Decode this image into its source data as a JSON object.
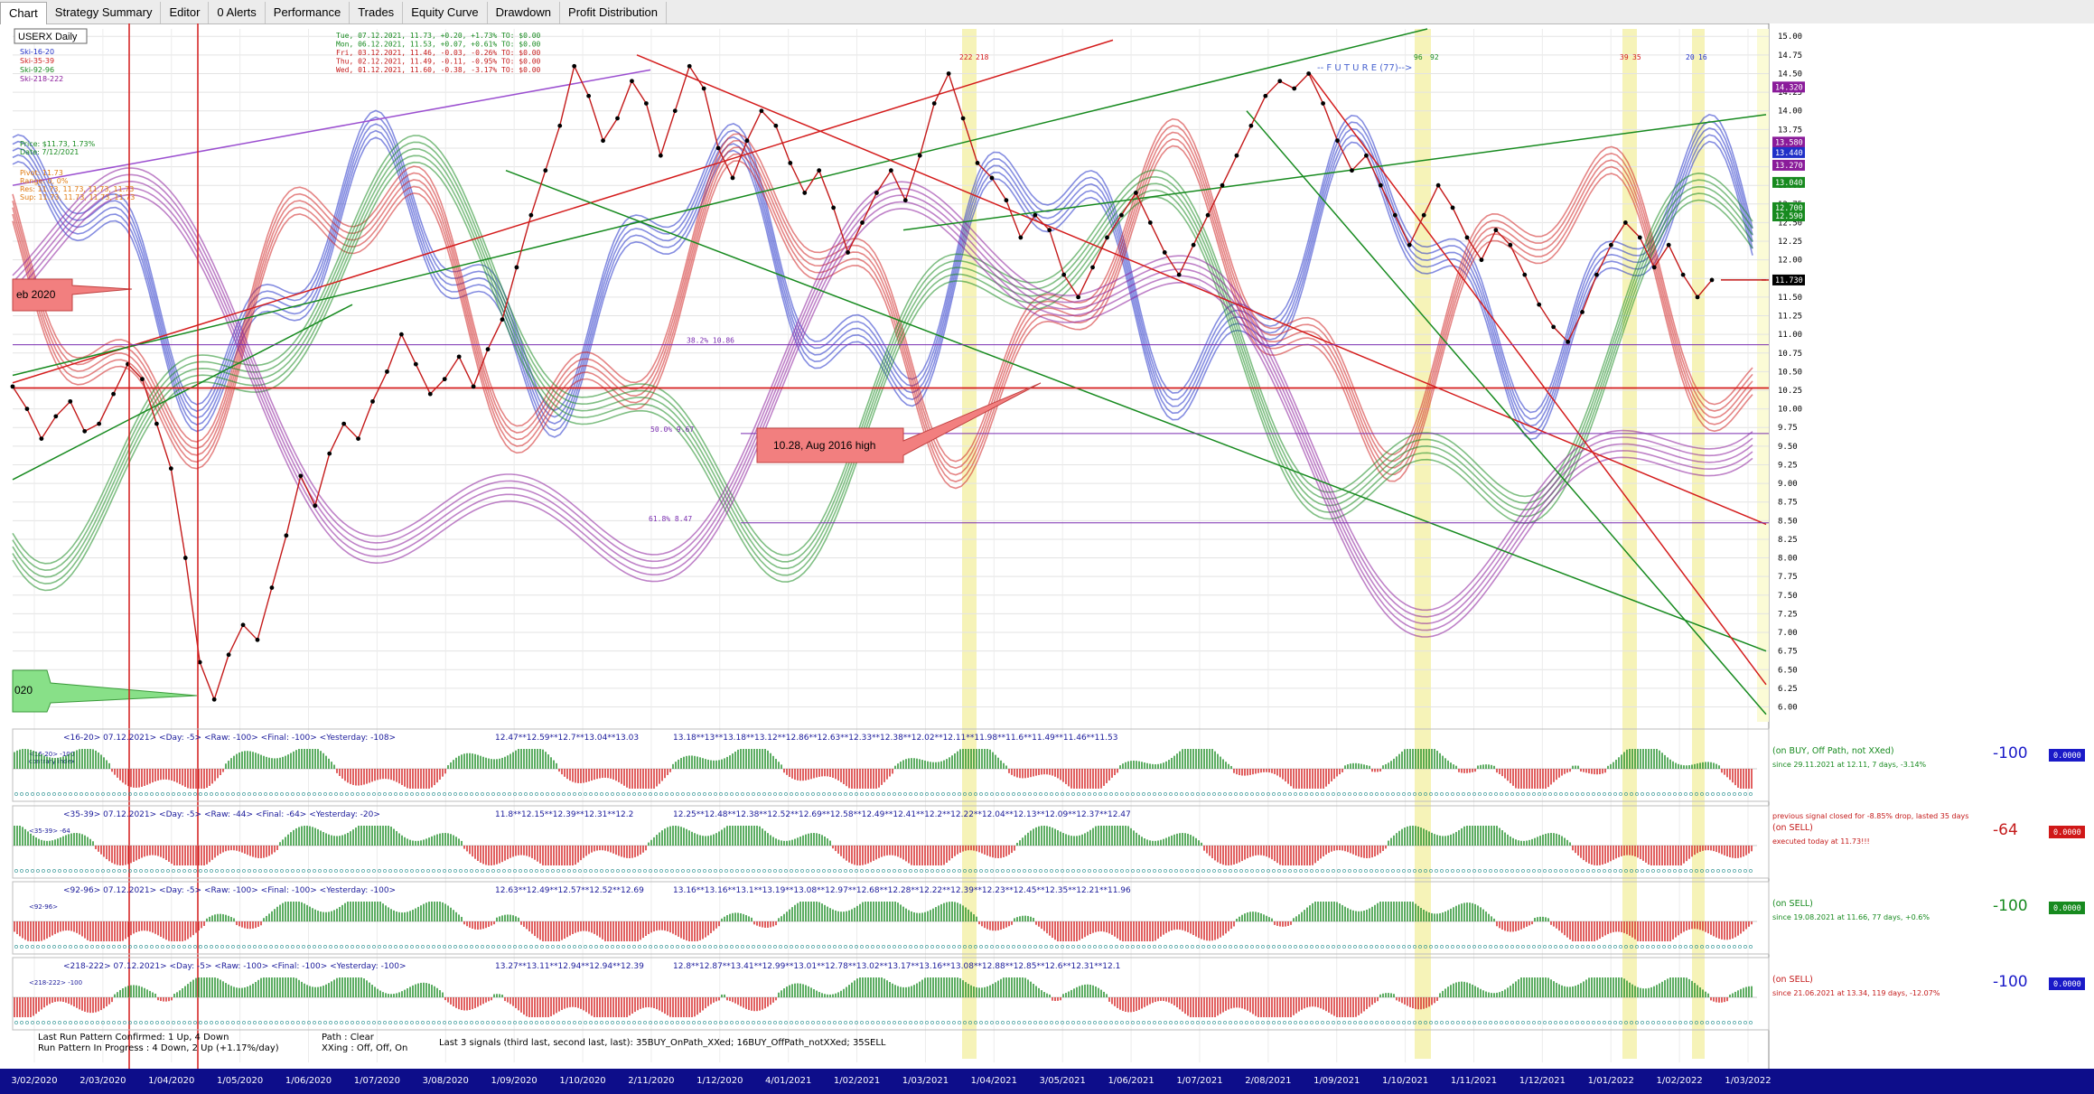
{
  "tabs": [
    "Chart",
    "Strategy Summary",
    "Editor",
    "0 Alerts",
    "Performance",
    "Trades",
    "Equity Curve",
    "Drawdown",
    "Profit Distribution"
  ],
  "active_tab": "Chart",
  "chart_data": {
    "type": "line",
    "title": "USERX Daily",
    "legend": [
      "Ski-16-20",
      "Ski-35-39",
      "Ski-92-96",
      "Ski-218-222"
    ],
    "ohlc_lines": [
      "Tue, 07.12.2021, 11.73, +0.20, +1.73%   TO: $0.00",
      "Mon, 06.12.2021, 11.53, +0.07, +0.61%   TO: $0.00",
      "Fri, 03.12.2021, 11.46, -0.03, -0.26%   TO: $0.00",
      "Thu, 02.12.2021, 11.49, -0.11, -0.95%   TO: $0.00",
      "Wed, 01.12.2021, 11.60, -0.38, -3.17%   TO: $0.00"
    ],
    "price_info": [
      "Price: $11.73, 1.73%",
      "Date: 7/12/2021"
    ],
    "pivot_info": [
      "Pivot: 11.73",
      "Range: 0, 0%",
      "Res: 11.73, 11.73, 11.73, 11.73",
      "Sup: 11.73, 11.73, 11.73, 11.73"
    ],
    "future_label": "-- F U T U R E (77)-->",
    "annotations": [
      "eb 2020",
      "10.28, Aug 2016 high",
      "020"
    ],
    "fib_labels": [
      "38.2% 10.86",
      "50.0% 9.67",
      "61.8% 8.47"
    ],
    "cycle_labels": [
      "222",
      "218",
      "96",
      "92",
      "39",
      "35",
      "20",
      "16"
    ],
    "ylim": [
      5.8,
      15.1
    ],
    "y_ticks": [
      6.0,
      6.25,
      6.5,
      6.75,
      7.0,
      7.25,
      7.5,
      7.75,
      8.0,
      8.25,
      8.5,
      8.75,
      9.0,
      9.25,
      9.5,
      9.75,
      10.0,
      10.25,
      10.5,
      10.75,
      11.0,
      11.25,
      11.5,
      11.75,
      12.0,
      12.25,
      12.5,
      12.75,
      13.0,
      13.25,
      13.5,
      13.75,
      14.0,
      14.25,
      14.5,
      14.75,
      15.0
    ],
    "x_ticks": [
      "3/02/2020",
      "2/03/2020",
      "1/04/2020",
      "1/05/2020",
      "1/06/2020",
      "1/07/2020",
      "3/08/2020",
      "1/09/2020",
      "1/10/2020",
      "2/11/2020",
      "1/12/2020",
      "4/01/2021",
      "1/02/2021",
      "1/03/2021",
      "1/04/2021",
      "3/05/2021",
      "1/06/2021",
      "1/07/2021",
      "2/08/2021",
      "1/09/2021",
      "1/10/2021",
      "1/11/2021",
      "1/12/2021",
      "1/01/2022",
      "1/02/2022",
      "1/03/2022"
    ],
    "price_tags": [
      {
        "value": "14.320",
        "bg": "#8a1b9a"
      },
      {
        "value": "13.580",
        "bg": "#8a1b9a"
      },
      {
        "value": "13.440",
        "bg": "#2030c8"
      },
      {
        "value": "13.270",
        "bg": "#8a1b9a"
      },
      {
        "value": "13.040",
        "bg": "#178a1f"
      },
      {
        "value": "12.700",
        "bg": "#178a1f"
      },
      {
        "value": "12.590",
        "bg": "#178a1f"
      },
      {
        "value": "11.730",
        "bg": "#000000"
      }
    ],
    "horizontal_levels": [
      10.86,
      10.28,
      9.67,
      8.47,
      11.73
    ],
    "price_series": [
      10.3,
      10.0,
      9.6,
      9.9,
      10.1,
      9.7,
      9.8,
      10.2,
      10.6,
      10.4,
      9.8,
      9.2,
      8.0,
      6.6,
      6.1,
      6.7,
      7.1,
      6.9,
      7.6,
      8.3,
      9.1,
      8.7,
      9.4,
      9.8,
      9.6,
      10.1,
      10.5,
      11.0,
      10.6,
      10.2,
      10.4,
      10.7,
      10.3,
      10.8,
      11.2,
      11.9,
      12.6,
      13.2,
      13.8,
      14.6,
      14.2,
      13.6,
      13.9,
      14.4,
      14.1,
      13.4,
      14.0,
      14.6,
      14.3,
      13.5,
      13.1,
      13.6,
      14.0,
      13.8,
      13.3,
      12.9,
      13.2,
      12.7,
      12.1,
      12.5,
      12.9,
      13.2,
      12.8,
      13.4,
      14.1,
      14.5,
      13.9,
      13.3,
      13.1,
      12.8,
      12.3,
      12.6,
      12.4,
      11.8,
      11.5,
      11.9,
      12.3,
      12.6,
      12.9,
      12.5,
      12.1,
      11.8,
      12.2,
      12.6,
      13.0,
      13.4,
      13.8,
      14.2,
      14.4,
      14.3,
      14.5,
      14.1,
      13.6,
      13.2,
      13.4,
      13.0,
      12.6,
      12.2,
      12.6,
      13.0,
      12.7,
      12.3,
      12.0,
      12.4,
      12.2,
      11.8,
      11.4,
      11.1,
      10.9,
      11.3,
      11.8,
      12.2,
      12.5,
      12.3,
      11.9,
      12.2,
      11.8,
      11.5,
      11.73
    ],
    "indicators": [
      {
        "name": "<16-20>",
        "header": "<16-20>  07.12.2021>  <Day: -5>  <Raw: -100>  <Final: -100>  <Yesterday: -108>",
        "sub": "<16-20> -100",
        "sub2": "contrary index",
        "seq1": "12.47**12.59**12.7**13.04**13.03",
        "seq2": "13.18**13**13.18**13.12**12.86**12.63**12.33**12.38**12.02**12.11**11.98**11.6**11.49**11.46**11.53",
        "status": "(on BUY, Off Path, not XXed)",
        "status_color": "#178a1f",
        "since": "since 29.11.2021 at 12.11, 7 days, -3.14%",
        "since_color": "#178a1f",
        "note": "",
        "value": "-100",
        "value_color": "#1a1ac8",
        "badge": "0.0000",
        "badge_bg": "#1a1ac8"
      },
      {
        "name": "<35-39>",
        "header": "<35-39>  07.12.2021>  <Day: -5>  <Raw: -44>  <Final: -64>  <Yesterday: -20>",
        "sub": "<35-39> -64",
        "sub2": "",
        "seq1": "11.8**12.15**12.39**12.31**12.2",
        "seq2": "12.25**12.48**12.38**12.52**12.69**12.58**12.49**12.41**12.2**12.22**12.04**12.13**12.09**12.37**12.47",
        "status": "(on SELL)",
        "status_color": "#c41a1a",
        "since": "executed today at 11.73!!!",
        "since_color": "#c41a1a",
        "note": "previous signal closed for -8.85% drop, lasted 35 days",
        "value": "-64",
        "value_color": "#c41a1a",
        "badge": "0.0000",
        "badge_bg": "#d01818"
      },
      {
        "name": "<92-96>",
        "header": "<92-96>  07.12.2021>  <Day: -5>  <Raw: -100>  <Final: -100>  <Yesterday: -100>",
        "sub": "<92-96>",
        "sub2": "",
        "seq1": "12.63**12.49**12.57**12.52**12.69",
        "seq2": "13.16**13.16**13.1**13.19**13.08**12.97**12.68**12.28**12.22**12.39**12.23**12.45**12.35**12.21**11.96",
        "status": "(on SELL)",
        "status_color": "#178a1f",
        "since": "since 19.08.2021 at 11.66, 77 days, +0.6%",
        "since_color": "#178a1f",
        "note": "",
        "value": "-100",
        "value_color": "#178a1f",
        "badge": "0.0000",
        "badge_bg": "#178a1f"
      },
      {
        "name": "<218-222>",
        "header": "<218-222>  07.12.2021>  <Day: -5>  <Raw: -100>  <Final: -100>  <Yesterday: -100>",
        "sub": "<218-222> -100",
        "sub2": "",
        "seq1": "13.27**13.11**12.94**12.94**12.39",
        "seq2": "12.8**12.87**13.41**12.99**13.01**12.78**13.02**13.17**13.16**13.08**12.88**12.85**12.6**12.31**12.1",
        "status": "(on SELL)",
        "status_color": "#c41a1a",
        "since": "since 21.06.2021 at 13.34, 119 days, -12.07%",
        "since_color": "#c41a1a",
        "note": "",
        "value": "-100",
        "value_color": "#1a1ac8",
        "badge": "0.0000",
        "badge_bg": "#1a1ac8"
      }
    ],
    "footer": {
      "line1": "Last Run Pattern Confirmed: 1 Up, 4 Down",
      "line2": "Run Pattern In Progress      : 4 Down, 2 Up (+1.17%/day)",
      "path": "Path    : Clear",
      "xxing": "XXing : Off, Off, On",
      "signals": "Last 3 signals (third last, second last, last): 35BUY_OnPath_XXed;  16BUY_OffPath_notXXed;  35SELL"
    }
  }
}
